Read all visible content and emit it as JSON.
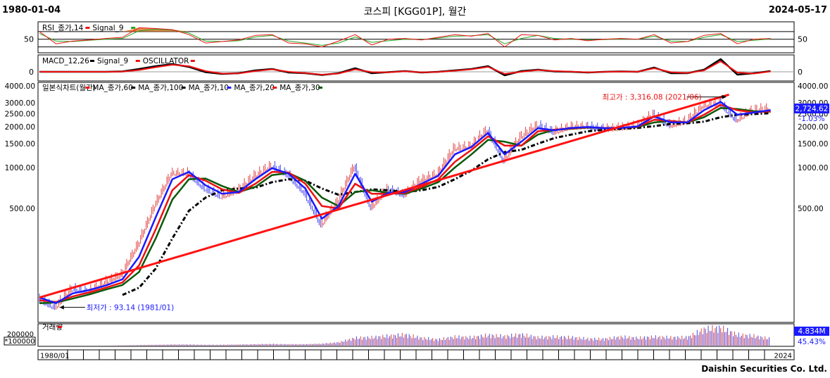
{
  "header": {
    "start_date": "1980-01-04",
    "title": "코스피 [KGG01P], 월간",
    "end_date": "2024-05-17"
  },
  "footer": {
    "company": "Daishin Securities Co. Ltd."
  },
  "colors": {
    "red": "#ee1111",
    "green": "#22aa22",
    "black": "#000000",
    "blue": "#1a1aff",
    "darkgreen": "#0a5a0a",
    "trend": "#ff1111",
    "candle_up": "#e04444",
    "candle_dn": "#4444ee",
    "rsi_fill": "#e07020",
    "badge_bg": "#1a1aff"
  },
  "chart_data": [
    {
      "name": "rsi-panel",
      "type": "line",
      "legend": [
        {
          "text": "RSI_종가,14",
          "color": "#ee1111"
        },
        {
          "text": "Signal_9",
          "color": "#22aa22"
        }
      ],
      "y_tick_labels": [
        "50"
      ],
      "x": [
        1980,
        1981,
        1982,
        1983,
        1984,
        1985,
        1986,
        1987,
        1988,
        1989,
        1990,
        1991,
        1992,
        1993,
        1994,
        1995,
        1996,
        1997,
        1998,
        1999,
        2000,
        2001,
        2002,
        2003,
        2004,
        2005,
        2006,
        2007,
        2008,
        2009,
        2010,
        2011,
        2012,
        2013,
        2014,
        2015,
        2016,
        2017,
        2018,
        2019,
        2020,
        2021,
        2022,
        2023,
        2024
      ],
      "rsi": [
        70,
        38,
        45,
        48,
        52,
        55,
        80,
        78,
        75,
        62,
        40,
        44,
        48,
        60,
        62,
        40,
        38,
        30,
        45,
        62,
        35,
        50,
        52,
        48,
        55,
        62,
        58,
        65,
        30,
        62,
        60,
        48,
        52,
        46,
        50,
        52,
        50,
        62,
        40,
        44,
        60,
        65,
        38,
        50,
        52
      ],
      "signal": [
        65,
        45,
        44,
        47,
        50,
        52,
        72,
        76,
        74,
        66,
        45,
        44,
        46,
        56,
        60,
        45,
        40,
        34,
        40,
        56,
        42,
        46,
        50,
        49,
        53,
        58,
        59,
        62,
        38,
        52,
        60,
        52,
        50,
        48,
        49,
        51,
        50,
        58,
        45,
        44,
        55,
        62,
        44,
        47,
        51
      ]
    },
    {
      "name": "macd-panel",
      "type": "line",
      "legend": [
        {
          "text": "MACD_12,26",
          "color": "#000000"
        },
        {
          "text": "Signal_9",
          "color": "#ee1111"
        },
        {
          "text": "OSCILLATOR",
          "color": "#ee1111"
        }
      ],
      "y_tick_labels": [
        "0"
      ],
      "x": [
        1980,
        1981,
        1982,
        1983,
        1984,
        1985,
        1986,
        1987,
        1988,
        1989,
        1990,
        1991,
        1992,
        1993,
        1994,
        1995,
        1996,
        1997,
        1998,
        1999,
        2000,
        2001,
        2002,
        2003,
        2004,
        2005,
        2006,
        2007,
        2008,
        2009,
        2010,
        2011,
        2012,
        2013,
        2014,
        2015,
        2016,
        2017,
        2018,
        2019,
        2020,
        2021,
        2022,
        2023,
        2024
      ],
      "macd": [
        0,
        0,
        0,
        0,
        0,
        5,
        40,
        80,
        110,
        70,
        -5,
        -30,
        -20,
        20,
        40,
        -10,
        -20,
        -45,
        -20,
        50,
        -20,
        -5,
        10,
        -10,
        0,
        20,
        40,
        80,
        -50,
        10,
        30,
        5,
        0,
        -10,
        0,
        5,
        0,
        60,
        -20,
        -20,
        30,
        180,
        -40,
        -20,
        10
      ],
      "signal": [
        0,
        0,
        0,
        0,
        0,
        3,
        25,
        65,
        100,
        80,
        10,
        -25,
        -22,
        10,
        35,
        0,
        -18,
        -40,
        -25,
        35,
        -5,
        -8,
        8,
        -8,
        -2,
        15,
        35,
        70,
        -30,
        0,
        25,
        10,
        2,
        -8,
        -1,
        4,
        1,
        50,
        -5,
        -18,
        20,
        150,
        -10,
        -25,
        5
      ]
    },
    {
      "name": "price-panel",
      "type": "line",
      "log_scale": true,
      "legend": [
        {
          "text": "일본식차트(월간)",
          "color": "#ee1111"
        },
        {
          "text": "MA_종가,60",
          "color": "#000000"
        },
        {
          "text": "MA_종가,100",
          "color": "#000000"
        },
        {
          "text": "MA_종가,10",
          "color": "#1a1aff"
        },
        {
          "text": "MA_종가,20",
          "color": "#ee1111"
        },
        {
          "text": "MA_종가,30",
          "color": "#0a5a0a"
        }
      ],
      "y_tick_labels": [
        "4000.00",
        "3000.00",
        "2500.00",
        "2000.00",
        "1500.00",
        "1000.00",
        "500.00"
      ],
      "y_ticks": [
        4000,
        3000,
        2500,
        2000,
        1500,
        1000,
        500
      ],
      "x_tick_labels": [
        "1980/01",
        "2024"
      ],
      "x": [
        1980,
        1981,
        1982,
        1983,
        1984,
        1985,
        1986,
        1987,
        1988,
        1989,
        1990,
        1991,
        1992,
        1993,
        1994,
        1995,
        1996,
        1997,
        1998,
        1999,
        2000,
        2001,
        2002,
        2003,
        2004,
        2005,
        2006,
        2007,
        2008,
        2009,
        2010,
        2011,
        2012,
        2013,
        2014,
        2015,
        2016,
        2017,
        2018,
        2019,
        2020,
        2021,
        2022,
        2023,
        2024
      ],
      "close": [
        106,
        93,
        128,
        121,
        142,
        163,
        272,
        525,
        907,
        909,
        696,
        610,
        678,
        866,
        1027,
        882,
        651,
        376,
        562,
        1028,
        504,
        693,
        627,
        810,
        895,
        1379,
        1434,
        1897,
        1124,
        1682,
        2051,
        1826,
        1997,
        2011,
        1916,
        1961,
        2026,
        2467,
        2041,
        2197,
        2873,
        2977,
        2236,
        2655,
        2724
      ],
      "ma10": [
        110,
        100,
        118,
        125,
        135,
        150,
        220,
        430,
        820,
        930,
        740,
        640,
        660,
        820,
        990,
        900,
        700,
        420,
        520,
        900,
        560,
        650,
        660,
        760,
        870,
        1250,
        1420,
        1800,
        1250,
        1550,
        1950,
        1880,
        1960,
        1990,
        1950,
        1960,
        2010,
        2380,
        2150,
        2150,
        2650,
        3050,
        2450,
        2550,
        2650
      ],
      "ma20": [
        105,
        102,
        112,
        120,
        130,
        142,
        190,
        350,
        680,
        880,
        800,
        690,
        650,
        760,
        930,
        920,
        760,
        520,
        500,
        760,
        640,
        640,
        650,
        720,
        820,
        1100,
        1350,
        1700,
        1450,
        1450,
        1850,
        1900,
        1940,
        1980,
        1960,
        1960,
        2000,
        2250,
        2200,
        2150,
        2450,
        2900,
        2650,
        2550,
        2600
      ],
      "ma30": [
        100,
        101,
        108,
        116,
        126,
        136,
        170,
        300,
        580,
        820,
        830,
        730,
        660,
        720,
        880,
        910,
        800,
        600,
        520,
        660,
        680,
        650,
        640,
        700,
        780,
        1000,
        1250,
        1600,
        1550,
        1450,
        1750,
        1900,
        1930,
        1970,
        1960,
        1960,
        1990,
        2150,
        2200,
        2150,
        2350,
        2750,
        2700,
        2600,
        2580
      ],
      "ma60": [
        null,
        null,
        null,
        null,
        null,
        115,
        130,
        180,
        300,
        480,
        600,
        680,
        700,
        710,
        780,
        820,
        800,
        700,
        630,
        660,
        690,
        680,
        660,
        680,
        720,
        820,
        950,
        1150,
        1300,
        1350,
        1500,
        1650,
        1750,
        1850,
        1900,
        1930,
        1960,
        2020,
        2100,
        2120,
        2180,
        2350,
        2450,
        2480,
        2520
      ],
      "trend": {
        "x": [
          1980,
          2021.5
        ],
        "y": [
          110,
          3450
        ]
      },
      "annotations": [
        {
          "text": "최고가 : 3,316.08 (2021/06)",
          "x": 2021.5,
          "y": 3316,
          "color": "#ee1111"
        },
        {
          "text": "최저가 : 93.14 (1981/01)",
          "x": 1981.05,
          "y": 93.14,
          "color": "#1a1aff"
        }
      ],
      "last_value": "2,724.62",
      "change": "-1.03%"
    },
    {
      "name": "volume-panel",
      "type": "bar",
      "legend": [
        {
          "text": "거래량",
          "color": "#ee1111"
        }
      ],
      "y_tick_labels": [
        "200000"
      ],
      "unit_label": "*100000",
      "x": [
        1980,
        1981,
        1982,
        1983,
        1984,
        1985,
        1986,
        1987,
        1988,
        1989,
        1990,
        1991,
        1992,
        1993,
        1994,
        1995,
        1996,
        1997,
        1998,
        1999,
        2000,
        2001,
        2002,
        2003,
        2004,
        2005,
        2006,
        2007,
        2008,
        2009,
        2010,
        2011,
        2012,
        2013,
        2014,
        2015,
        2016,
        2017,
        2018,
        2019,
        2020,
        2021,
        2022,
        2023,
        2024
      ],
      "values": [
        0,
        0,
        0,
        0,
        0,
        1000,
        2000,
        3000,
        4000,
        4000,
        3000,
        3000,
        4000,
        5000,
        6000,
        5000,
        5000,
        7000,
        12000,
        28000,
        30000,
        35000,
        40000,
        28000,
        22000,
        32000,
        30000,
        38000,
        34000,
        40000,
        30000,
        32000,
        30000,
        25000,
        24000,
        32000,
        28000,
        32000,
        30000,
        30000,
        60000,
        65000,
        40000,
        35000,
        25000
      ],
      "last_value": "4.834M",
      "change": "45.43%"
    }
  ]
}
